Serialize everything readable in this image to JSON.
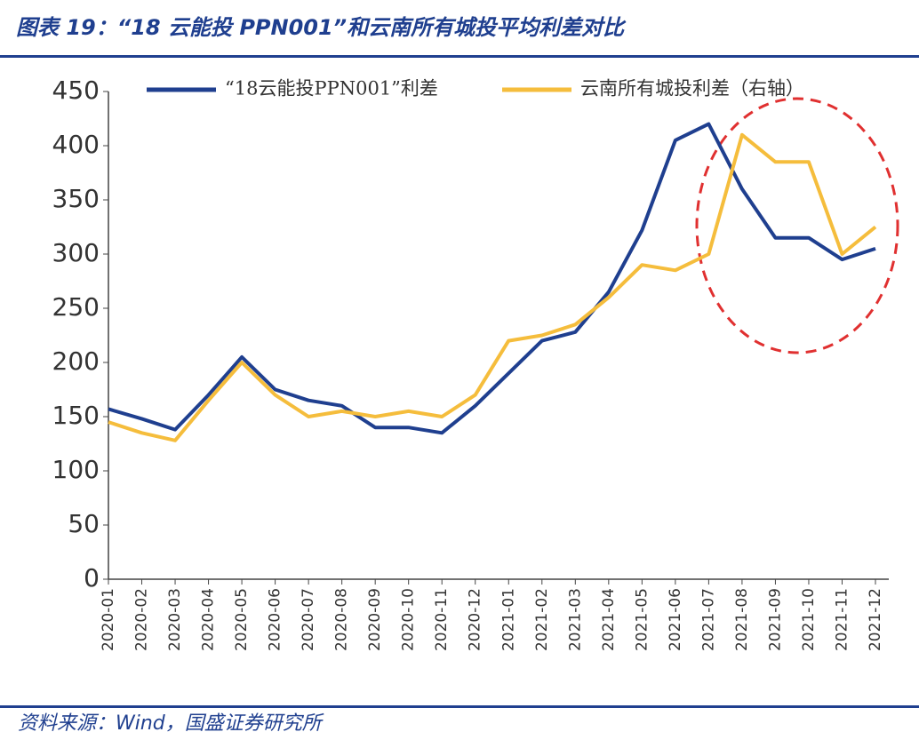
{
  "chart_data": {
    "type": "line",
    "title": "图表 19：“18 云能投 PPN001”和云南所有城投平均利差对比",
    "source": "资料来源：Wind，国盛证券研究所",
    "categories": [
      "2020-01",
      "2020-02",
      "2020-03",
      "2020-04",
      "2020-05",
      "2020-06",
      "2020-07",
      "2020-08",
      "2020-09",
      "2020-10",
      "2020-11",
      "2020-12",
      "2021-01",
      "2021-02",
      "2021-03",
      "2021-04",
      "2021-05",
      "2021-06",
      "2021-07",
      "2021-08",
      "2021-09",
      "2021-10",
      "2021-11",
      "2021-12"
    ],
    "series": [
      {
        "name": "“18云能投PPN001”利差",
        "color": "#1f3f8f",
        "values": [
          157,
          148,
          138,
          170,
          205,
          175,
          165,
          160,
          140,
          140,
          135,
          160,
          190,
          220,
          228,
          265,
          322,
          405,
          420,
          360,
          315,
          315,
          295,
          305
        ]
      },
      {
        "name": "云南所有城投利差（右轴）",
        "color": "#f5bd3c",
        "values": [
          145,
          135,
          128,
          165,
          200,
          170,
          150,
          155,
          150,
          155,
          150,
          170,
          220,
          225,
          235,
          260,
          290,
          285,
          300,
          410,
          385,
          385,
          300,
          325
        ]
      }
    ],
    "ylim": [
      0,
      450
    ],
    "yticks": [
      0,
      50,
      100,
      150,
      200,
      250,
      300,
      350,
      400,
      450
    ],
    "legend": "top"
  }
}
